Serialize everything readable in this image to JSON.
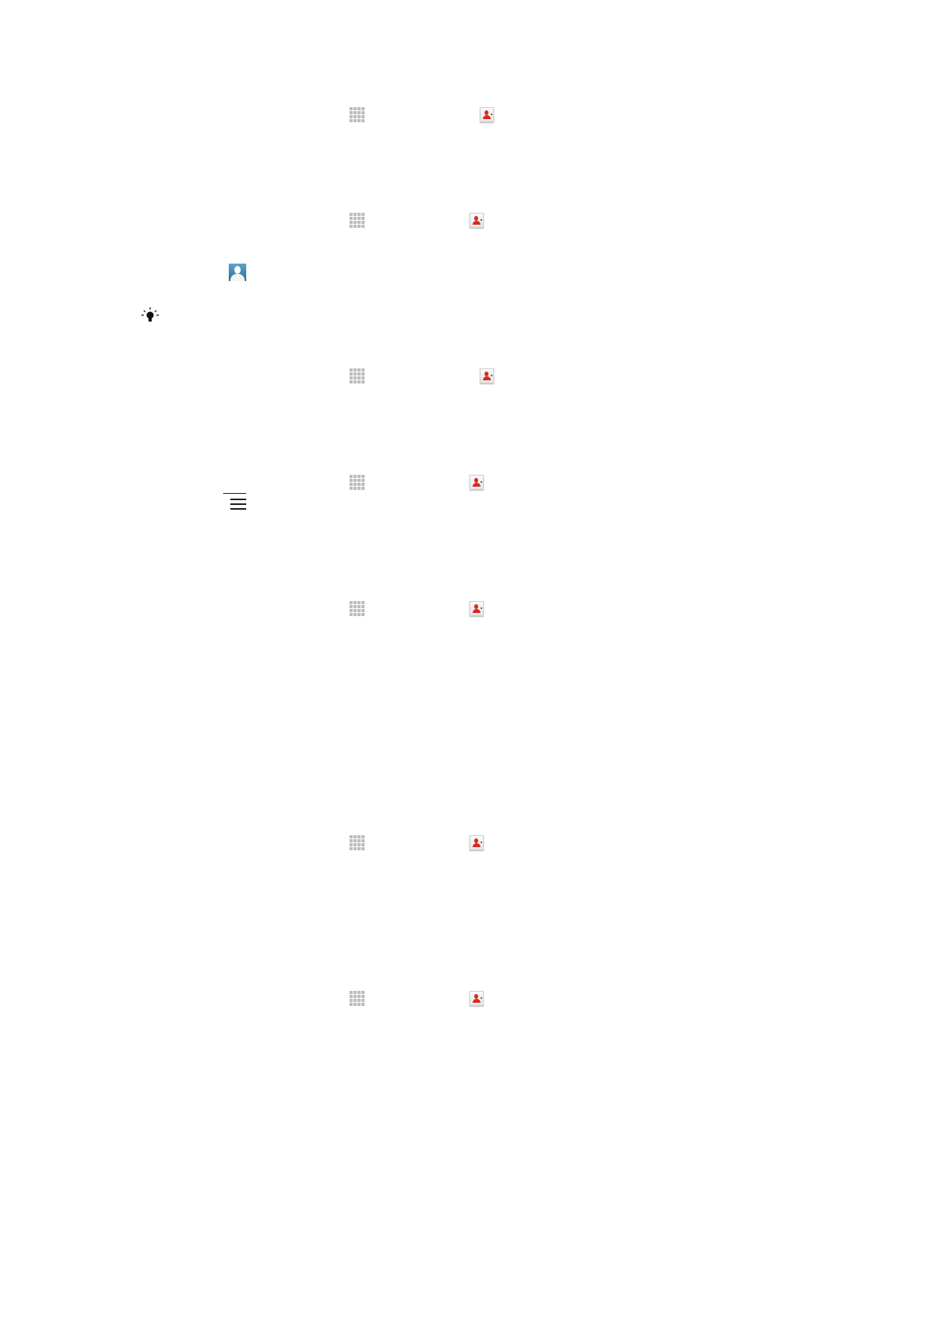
{
  "icons": [
    {
      "name": "app-grid-icon"
    },
    {
      "name": "contacts-icon"
    },
    {
      "name": "app-grid-icon"
    },
    {
      "name": "contacts-icon"
    },
    {
      "name": "contact-avatar-icon"
    },
    {
      "name": "tip-lightbulb-icon"
    },
    {
      "name": "app-grid-icon"
    },
    {
      "name": "contacts-icon"
    },
    {
      "name": "app-grid-icon"
    },
    {
      "name": "contacts-icon"
    },
    {
      "name": "menu-icon"
    },
    {
      "name": "app-grid-icon"
    },
    {
      "name": "contacts-icon"
    },
    {
      "name": "app-grid-icon"
    },
    {
      "name": "contacts-icon"
    },
    {
      "name": "app-grid-icon"
    },
    {
      "name": "contacts-icon"
    }
  ],
  "colors": {
    "contact_red": "#d9281e",
    "avatar_blue": "#3a7fab",
    "grid_gray": "#bdbdbd"
  }
}
